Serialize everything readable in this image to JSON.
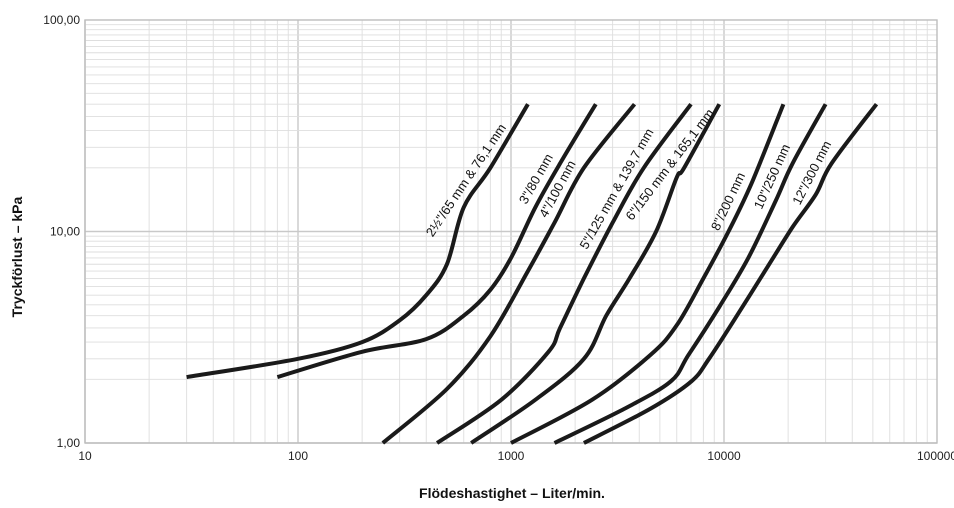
{
  "chart_data": {
    "type": "line",
    "title": "",
    "xlabel": "Flödeshastighet – Liter/min.",
    "ylabel": "Tryckförlust – kPa",
    "x_scale": "log",
    "y_scale": "log",
    "xlim": [
      10,
      100000
    ],
    "ylim": [
      1,
      100
    ],
    "x_ticks": [
      "10",
      "100",
      "1000",
      "10000",
      "100000"
    ],
    "y_ticks": [
      "1,00",
      "10,00",
      "100,00"
    ],
    "grid": true,
    "legend": "none",
    "line_color": "#1a1a1a",
    "series": [
      {
        "name": "2½\"/65 mm & 76,1 mm",
        "points": [
          [
            30,
            2.05
          ],
          [
            100,
            2.5
          ],
          [
            200,
            3.0
          ],
          [
            300,
            3.8
          ],
          [
            400,
            5.0
          ],
          [
            500,
            7.0
          ],
          [
            600,
            13
          ],
          [
            800,
            20
          ],
          [
            1200,
            40
          ]
        ]
      },
      {
        "name": "3\"/80 mm",
        "points": [
          [
            80,
            2.05
          ],
          [
            200,
            2.7
          ],
          [
            400,
            3.1
          ],
          [
            600,
            4.0
          ],
          [
            800,
            5.3
          ],
          [
            1000,
            7.5
          ],
          [
            1300,
            13
          ],
          [
            1700,
            21
          ],
          [
            2500,
            40
          ]
        ]
      },
      {
        "name": "4\"/100 mm",
        "points": [
          [
            250,
            1.0
          ],
          [
            500,
            1.8
          ],
          [
            800,
            3.2
          ],
          [
            1200,
            6.5
          ],
          [
            1600,
            11
          ],
          [
            2200,
            20
          ],
          [
            3800,
            40
          ]
        ]
      },
      {
        "name": "5\"/125 mm & 139,7 mm",
        "points": [
          [
            450,
            1.0
          ],
          [
            900,
            1.6
          ],
          [
            1500,
            2.7
          ],
          [
            1700,
            3.5
          ],
          [
            2200,
            6
          ],
          [
            3000,
            11
          ],
          [
            4200,
            20
          ],
          [
            7000,
            40
          ]
        ]
      },
      {
        "name": "6\"/150 mm & 165,1 mm",
        "points": [
          [
            650,
            1.0
          ],
          [
            1300,
            1.6
          ],
          [
            2200,
            2.5
          ],
          [
            2800,
            4.0
          ],
          [
            3600,
            6
          ],
          [
            4800,
            10
          ],
          [
            6000,
            18
          ],
          [
            6500,
            20
          ],
          [
            9500,
            40
          ]
        ]
      },
      {
        "name": "8\"/200 mm",
        "points": [
          [
            1000,
            1.0
          ],
          [
            2400,
            1.6
          ],
          [
            4500,
            2.6
          ],
          [
            6000,
            3.6
          ],
          [
            8000,
            6
          ],
          [
            10500,
            10
          ],
          [
            13500,
            17
          ],
          [
            19000,
            40
          ]
        ]
      },
      {
        "name": "10\"/250 mm",
        "points": [
          [
            1600,
            1.0
          ],
          [
            3400,
            1.45
          ],
          [
            5600,
            1.95
          ],
          [
            6800,
            2.6
          ],
          [
            9500,
            4.4
          ],
          [
            13000,
            7.5
          ],
          [
            17500,
            14
          ],
          [
            21000,
            21
          ],
          [
            30000,
            40
          ]
        ]
      },
      {
        "name": "12\"/300 mm",
        "points": [
          [
            2200,
            1.0
          ],
          [
            4500,
            1.45
          ],
          [
            7000,
            1.95
          ],
          [
            8500,
            2.5
          ],
          [
            11500,
            4.0
          ],
          [
            16000,
            6.8
          ],
          [
            21000,
            10.5
          ],
          [
            27000,
            15
          ],
          [
            32000,
            21
          ],
          [
            52000,
            40
          ]
        ]
      }
    ]
  }
}
